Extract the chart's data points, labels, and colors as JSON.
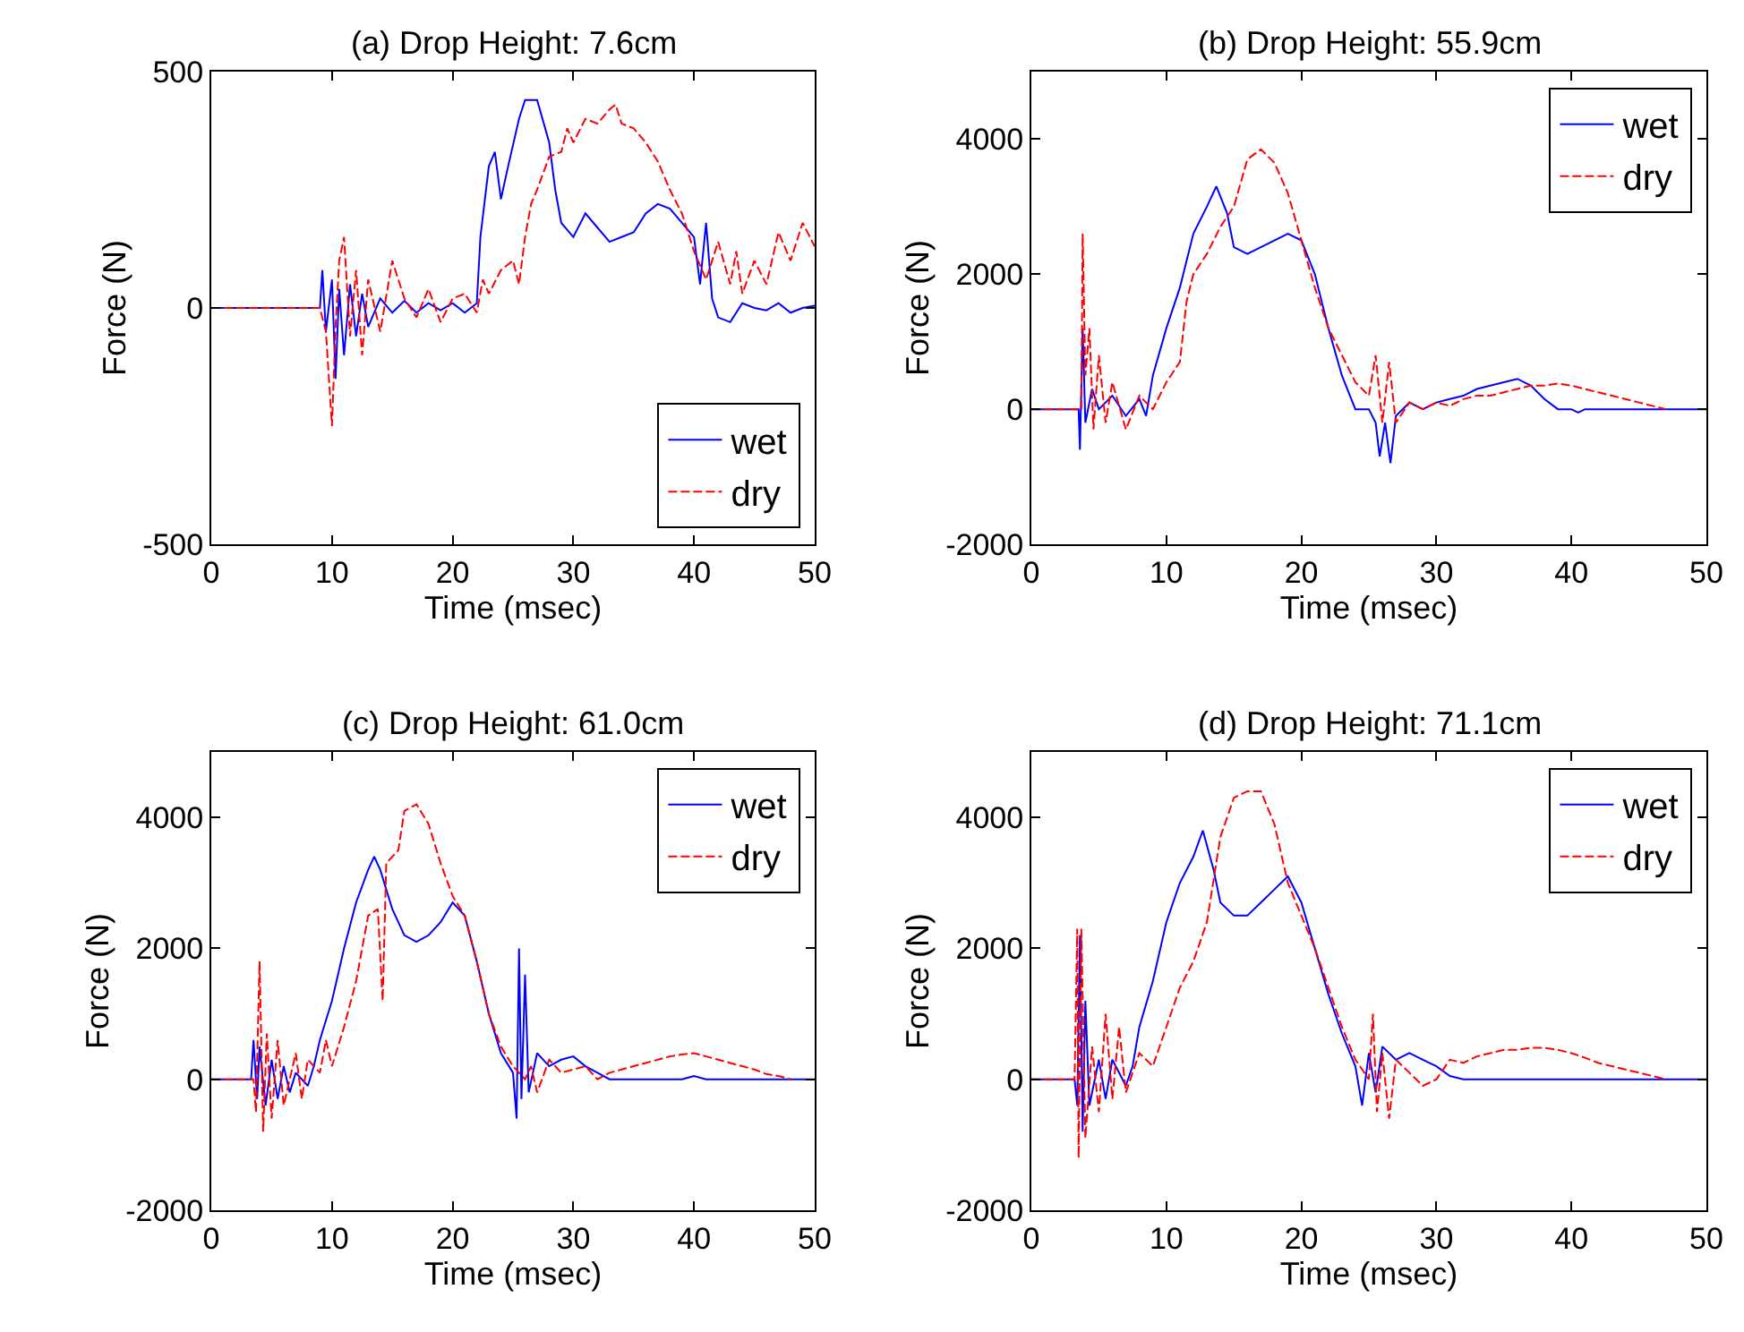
{
  "chart_data": [
    {
      "type": "line",
      "title": "(a) Drop Height: 7.6cm",
      "xlabel": "Time (msec)",
      "ylabel": "Force (N)",
      "xlim": [
        0,
        50
      ],
      "xticks": [
        0,
        10,
        20,
        30,
        40,
        50
      ],
      "ylim": [
        -500,
        500
      ],
      "yticks": [
        -500,
        0,
        500
      ],
      "legend": "bottom right",
      "series": [
        {
          "name": "wet",
          "color": "#0000ff",
          "line_style": "solid",
          "x": [
            0,
            9,
            9.2,
            9.5,
            10,
            10.3,
            10.6,
            11,
            11.5,
            12,
            12.5,
            13,
            14,
            15,
            16,
            17,
            18,
            19,
            20,
            21,
            22,
            22.3,
            23,
            23.5,
            24,
            24.6,
            25.5,
            26,
            27,
            28,
            28.5,
            29,
            30,
            31,
            32,
            33,
            34,
            35,
            36,
            37,
            38,
            39,
            40,
            40.5,
            41,
            41.5,
            42,
            43,
            44,
            45,
            46,
            47,
            48,
            49,
            50
          ],
          "values": [
            0,
            0,
            80,
            -50,
            60,
            -150,
            40,
            -100,
            50,
            -60,
            30,
            -40,
            20,
            -10,
            15,
            -10,
            10,
            -5,
            10,
            -10,
            10,
            150,
            300,
            330,
            230,
            300,
            400,
            440,
            440,
            350,
            250,
            180,
            150,
            200,
            170,
            140,
            150,
            160,
            200,
            220,
            210,
            180,
            150,
            50,
            180,
            20,
            -20,
            -30,
            10,
            0,
            -5,
            10,
            -10,
            0,
            5
          ]
        },
        {
          "name": "dry",
          "color": "#ff0000",
          "line_style": "dashed",
          "x": [
            0,
            9,
            9.5,
            10,
            10.3,
            10.6,
            11,
            11.5,
            12,
            12.5,
            13,
            14,
            15,
            16,
            17,
            18,
            19,
            20,
            21,
            22,
            22.5,
            23,
            24,
            25,
            25.5,
            26,
            26.5,
            27,
            28,
            29,
            29.5,
            30,
            31,
            32,
            33,
            33.5,
            34,
            35,
            36,
            37,
            38,
            39,
            40,
            41,
            42,
            43,
            43.5,
            44,
            45,
            46,
            47,
            48,
            49,
            50
          ],
          "values": [
            0,
            0,
            -50,
            -250,
            -40,
            100,
            150,
            -60,
            80,
            -100,
            60,
            -50,
            100,
            20,
            -20,
            40,
            -30,
            20,
            30,
            -10,
            60,
            30,
            80,
            100,
            50,
            150,
            220,
            250,
            320,
            330,
            380,
            350,
            400,
            390,
            420,
            430,
            390,
            380,
            350,
            310,
            250,
            200,
            120,
            60,
            140,
            50,
            120,
            30,
            100,
            50,
            160,
            100,
            180,
            130
          ]
        }
      ]
    },
    {
      "type": "line",
      "title": "(b) Drop Height: 55.9cm",
      "xlabel": "Time (msec)",
      "ylabel": "Force (N)",
      "xlim": [
        0,
        50
      ],
      "xticks": [
        0,
        10,
        20,
        30,
        40,
        50
      ],
      "ylim": [
        -2000,
        5000
      ],
      "yticks": [
        -2000,
        0,
        2000,
        4000
      ],
      "legend": "top right",
      "series": [
        {
          "name": "wet",
          "color": "#0000ff",
          "line_style": "solid",
          "x": [
            0,
            3.5,
            3.6,
            3.8,
            4,
            4.5,
            5,
            6,
            7,
            8,
            8.5,
            9,
            10,
            11,
            12,
            13,
            13.7,
            14.5,
            15,
            16,
            17,
            18,
            19,
            20,
            21,
            22,
            23,
            24,
            25,
            25.5,
            25.8,
            26.2,
            26.6,
            27,
            28,
            29,
            30,
            31,
            32,
            33,
            34,
            35,
            36,
            37,
            38,
            39,
            40,
            40.5,
            41,
            50
          ],
          "values": [
            0,
            0,
            -600,
            1200,
            -200,
            300,
            0,
            200,
            -100,
            150,
            -100,
            500,
            1200,
            1800,
            2600,
            3000,
            3300,
            2900,
            2400,
            2300,
            2400,
            2500,
            2600,
            2500,
            2000,
            1200,
            500,
            0,
            0,
            -200,
            -700,
            -200,
            -800,
            -100,
            100,
            0,
            100,
            150,
            200,
            300,
            350,
            400,
            450,
            350,
            150,
            0,
            0,
            -50,
            0,
            0
          ]
        },
        {
          "name": "dry",
          "color": "#ff0000",
          "line_style": "dashed",
          "x": [
            0,
            3.7,
            3.8,
            4,
            4.3,
            4.6,
            5,
            5.5,
            6,
            7,
            8,
            9,
            10,
            11,
            11.5,
            12,
            13,
            14,
            15,
            16,
            17,
            18,
            19,
            20,
            21,
            22,
            23,
            24,
            25,
            25.5,
            26,
            26.5,
            27,
            28,
            29,
            30,
            31,
            32,
            33,
            34,
            35,
            36,
            37,
            38,
            39,
            40,
            41,
            42,
            43,
            44,
            45,
            46,
            47
          ],
          "values": [
            0,
            0,
            2600,
            500,
            1200,
            -300,
            800,
            -200,
            400,
            -300,
            200,
            0,
            400,
            700,
            1600,
            2000,
            2300,
            2700,
            3000,
            3700,
            3850,
            3650,
            3200,
            2500,
            1800,
            1200,
            800,
            400,
            200,
            800,
            -200,
            700,
            -200,
            100,
            0,
            100,
            50,
            150,
            200,
            200,
            250,
            300,
            350,
            350,
            380,
            350,
            300,
            250,
            200,
            150,
            100,
            50,
            0
          ]
        }
      ]
    },
    {
      "type": "line",
      "title": "(c) Drop Height: 61.0cm",
      "xlabel": "Time (msec)",
      "ylabel": "Force (N)",
      "xlim": [
        0,
        50
      ],
      "xticks": [
        0,
        10,
        20,
        30,
        40,
        50
      ],
      "ylim": [
        -2000,
        5000
      ],
      "yticks": [
        -2000,
        0,
        2000,
        4000
      ],
      "legend": "top right",
      "series": [
        {
          "name": "wet",
          "color": "#0000ff",
          "line_style": "solid",
          "x": [
            0,
            3.3,
            3.5,
            3.8,
            4,
            4.5,
            5,
            5.5,
            6,
            6.5,
            7,
            8,
            8.5,
            9,
            10,
            11,
            12,
            13,
            13.5,
            14,
            15,
            16,
            17,
            18,
            19,
            20,
            21,
            22,
            23,
            24,
            25,
            25.3,
            25.5,
            25.7,
            26,
            26.3,
            27,
            28,
            29,
            30,
            31,
            32,
            33,
            35,
            39,
            40,
            41,
            50
          ],
          "values": [
            0,
            0,
            600,
            -300,
            500,
            -400,
            300,
            -300,
            200,
            -200,
            100,
            -100,
            200,
            600,
            1200,
            2000,
            2700,
            3200,
            3400,
            3200,
            2600,
            2200,
            2100,
            2200,
            2400,
            2700,
            2500,
            1800,
            1000,
            400,
            100,
            -600,
            2000,
            -300,
            1600,
            -200,
            400,
            200,
            300,
            350,
            200,
            100,
            0,
            0,
            0,
            50,
            0,
            0
          ]
        },
        {
          "name": "dry",
          "color": "#ff0000",
          "line_style": "dashed",
          "x": [
            0,
            3.5,
            3.7,
            4,
            4.3,
            4.6,
            5,
            5.5,
            6,
            7,
            7.5,
            8,
            9,
            9.5,
            10,
            11,
            12,
            13,
            13.8,
            14.2,
            14.5,
            15.5,
            16,
            17,
            18,
            19,
            20,
            21,
            22,
            23,
            24,
            25,
            26,
            26.5,
            27,
            28,
            29,
            30,
            31,
            32,
            33,
            34,
            35,
            36,
            37,
            38,
            39,
            40,
            41,
            42,
            43,
            44,
            45,
            46,
            47,
            48
          ],
          "values": [
            0,
            0,
            -500,
            1800,
            -800,
            700,
            -600,
            600,
            -400,
            400,
            -300,
            300,
            100,
            600,
            200,
            800,
            1500,
            2500,
            2600,
            1200,
            3300,
            3500,
            4100,
            4200,
            3900,
            3300,
            2800,
            2500,
            1800,
            1000,
            500,
            200,
            0,
            200,
            -200,
            300,
            100,
            150,
            200,
            0,
            100,
            150,
            200,
            250,
            300,
            350,
            380,
            400,
            350,
            300,
            250,
            200,
            150,
            80,
            50,
            0
          ]
        }
      ]
    },
    {
      "type": "line",
      "title": "(d) Drop Height: 71.1cm",
      "xlabel": "Time (msec)",
      "ylabel": "Force (N)",
      "xlim": [
        0,
        50
      ],
      "xticks": [
        0,
        10,
        20,
        30,
        40,
        50
      ],
      "ylim": [
        -2000,
        5000
      ],
      "yticks": [
        -2000,
        0,
        2000,
        4000
      ],
      "legend": "top right",
      "series": [
        {
          "name": "wet",
          "color": "#0000ff",
          "line_style": "solid",
          "x": [
            0,
            3.2,
            3.4,
            3.6,
            3.8,
            4,
            4.3,
            5,
            5.5,
            6,
            7,
            7.5,
            8,
            9,
            10,
            11,
            12,
            12.7,
            13.5,
            14,
            15,
            16,
            17,
            18,
            19,
            20,
            21,
            22,
            23,
            24,
            24.5,
            25,
            25.5,
            26,
            27,
            28,
            29,
            30,
            31,
            32,
            50
          ],
          "values": [
            0,
            0,
            -400,
            2200,
            -800,
            1200,
            -400,
            300,
            -300,
            300,
            -100,
            200,
            800,
            1500,
            2400,
            3000,
            3400,
            3800,
            3200,
            2700,
            2500,
            2500,
            2700,
            2900,
            3100,
            2700,
            2000,
            1300,
            700,
            200,
            -400,
            400,
            -200,
            500,
            300,
            400,
            300,
            200,
            50,
            0,
            0
          ]
        },
        {
          "name": "dry",
          "color": "#ff0000",
          "line_style": "dashed",
          "x": [
            0,
            3.2,
            3.4,
            3.5,
            3.7,
            4,
            4.5,
            5,
            5.5,
            6,
            6.5,
            7,
            8,
            9,
            10,
            11,
            12,
            13,
            14,
            15,
            16,
            17,
            18,
            19,
            20,
            21,
            22,
            23,
            24,
            25,
            25.3,
            25.6,
            26,
            26.5,
            27,
            28,
            29,
            30,
            31,
            32,
            33,
            34,
            35,
            36,
            37,
            38,
            39,
            40,
            41,
            42,
            43,
            44,
            45,
            46,
            47
          ],
          "values": [
            0,
            0,
            2300,
            -1200,
            2300,
            -900,
            500,
            -500,
            1000,
            -300,
            800,
            -200,
            400,
            200,
            800,
            1400,
            1800,
            2400,
            3700,
            4300,
            4400,
            4400,
            3900,
            3000,
            2500,
            2000,
            1400,
            800,
            300,
            0,
            1000,
            -500,
            400,
            -600,
            300,
            100,
            -100,
            0,
            300,
            250,
            350,
            400,
            450,
            450,
            480,
            480,
            450,
            400,
            330,
            250,
            200,
            150,
            100,
            50,
            0
          ]
        }
      ]
    }
  ]
}
